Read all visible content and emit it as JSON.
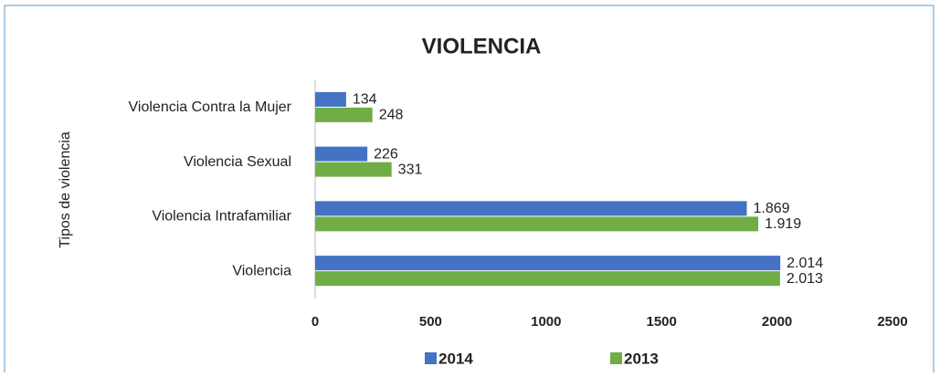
{
  "chart_data": {
    "type": "bar",
    "orientation": "horizontal",
    "title": "VIOLENCIA",
    "y_label": "Tipos de violencia",
    "categories": [
      "Violencia Contra la Mujer",
      "Violencia Sexual",
      "Violencia Intrafamiliar",
      "Violencia"
    ],
    "series": [
      {
        "name": "2014",
        "color": "#4472c4",
        "values": [
          134,
          226,
          1869,
          2014
        ],
        "value_labels": [
          "134",
          "226",
          "1.869",
          "2.014"
        ]
      },
      {
        "name": "2013",
        "color": "#70ad47",
        "values": [
          248,
          331,
          1919,
          2013
        ],
        "value_labels": [
          "248",
          "331",
          "1.919",
          "2.013"
        ]
      }
    ],
    "xlim": [
      0,
      2500
    ],
    "xticks": [
      0,
      500,
      1000,
      1500,
      2000,
      2500
    ],
    "grid": false,
    "legend": "bottom"
  }
}
